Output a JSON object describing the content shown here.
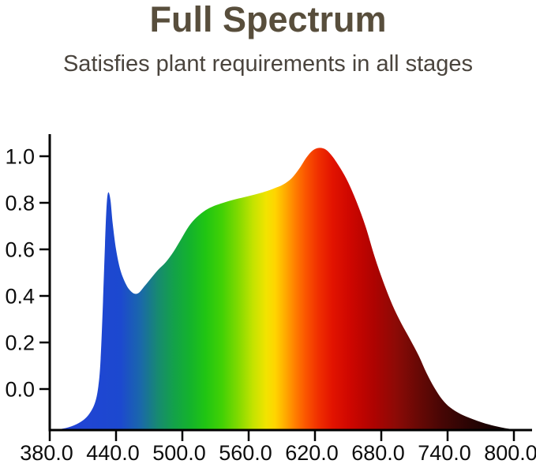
{
  "header": {
    "title": "Full Spectrum",
    "subtitle": "Satisfies plant requirements in all stages",
    "title_color": "#584e3c",
    "subtitle_color": "#4a443d"
  },
  "chart_data": {
    "type": "area",
    "title": "Full Spectrum",
    "subtitle": "Satisfies plant requirements in all stages",
    "xlabel": "",
    "ylabel": "",
    "x_ticks": [
      380,
      440,
      500,
      560,
      620,
      680,
      740,
      800
    ],
    "x_tick_labels": [
      "380.0",
      "440.0",
      "500.0",
      "560.0",
      "620.0",
      "680.0",
      "740.0",
      "800.0"
    ],
    "y_ticks": [
      0.0,
      0.2,
      0.4,
      0.6,
      0.8,
      1.0
    ],
    "y_tick_labels": [
      "0.0",
      "0.2",
      "0.4",
      "0.6",
      "0.8",
      "1.0"
    ],
    "xlim": [
      380,
      817
    ],
    "ylim": [
      -0.18,
      1.09
    ],
    "grid": false,
    "legend": false,
    "axis_color": "#000000",
    "description": "Relative spectral power distribution of a full-spectrum grow light: blue peak ~0.85 at 433 nm, dip ~0.41 at 457 nm, broad rise through green-yellow ~0.8, main red peak ~1.03 at 620-625 nm, tail to zero near 800 nm.",
    "points": [
      [
        380,
        -0.176
      ],
      [
        392,
        -0.17
      ],
      [
        402,
        -0.156
      ],
      [
        410,
        -0.135
      ],
      [
        416,
        -0.105
      ],
      [
        421,
        -0.058
      ],
      [
        424,
        0.012
      ],
      [
        426,
        0.125
      ],
      [
        428,
        0.35
      ],
      [
        430,
        0.62
      ],
      [
        431.5,
        0.79
      ],
      [
        433,
        0.845
      ],
      [
        435,
        0.81
      ],
      [
        437,
        0.71
      ],
      [
        440,
        0.6
      ],
      [
        444,
        0.51
      ],
      [
        449,
        0.45
      ],
      [
        453,
        0.422
      ],
      [
        457,
        0.409
      ],
      [
        461,
        0.415
      ],
      [
        466,
        0.443
      ],
      [
        472,
        0.478
      ],
      [
        478,
        0.512
      ],
      [
        485,
        0.545
      ],
      [
        492,
        0.59
      ],
      [
        499,
        0.645
      ],
      [
        506,
        0.7
      ],
      [
        513,
        0.738
      ],
      [
        521,
        0.768
      ],
      [
        529,
        0.787
      ],
      [
        537,
        0.8
      ],
      [
        546,
        0.813
      ],
      [
        556,
        0.824
      ],
      [
        566,
        0.836
      ],
      [
        575,
        0.848
      ],
      [
        583,
        0.862
      ],
      [
        591,
        0.878
      ],
      [
        599,
        0.906
      ],
      [
        606,
        0.948
      ],
      [
        612,
        0.993
      ],
      [
        618,
        1.025
      ],
      [
        624,
        1.036
      ],
      [
        630,
        1.028
      ],
      [
        636,
        0.998
      ],
      [
        643,
        0.948
      ],
      [
        650,
        0.888
      ],
      [
        658,
        0.8
      ],
      [
        666,
        0.695
      ],
      [
        674,
        0.568
      ],
      [
        682,
        0.458
      ],
      [
        690,
        0.362
      ],
      [
        698,
        0.283
      ],
      [
        706,
        0.214
      ],
      [
        714,
        0.142
      ],
      [
        721,
        0.068
      ],
      [
        728,
        0.006
      ],
      [
        735,
        -0.044
      ],
      [
        742,
        -0.078
      ],
      [
        752,
        -0.108
      ],
      [
        762,
        -0.128
      ],
      [
        772,
        -0.145
      ],
      [
        782,
        -0.158
      ],
      [
        792,
        -0.168
      ],
      [
        801,
        -0.174
      ],
      [
        808,
        -0.176
      ]
    ],
    "gradient_stops": [
      [
        0.0,
        "#2441d8"
      ],
      [
        0.15,
        "#1c49cf"
      ],
      [
        0.192,
        "#1a68aa"
      ],
      [
        0.229,
        "#178a70"
      ],
      [
        0.262,
        "#13a14a"
      ],
      [
        0.297,
        "#14b32c"
      ],
      [
        0.329,
        "#20c513"
      ],
      [
        0.364,
        "#41d105"
      ],
      [
        0.4,
        "#84da00"
      ],
      [
        0.43,
        "#c4e300"
      ],
      [
        0.458,
        "#f2e300"
      ],
      [
        0.477,
        "#ffd400"
      ],
      [
        0.498,
        "#ffab00"
      ],
      [
        0.519,
        "#ff7e00"
      ],
      [
        0.542,
        "#fa5400"
      ],
      [
        0.568,
        "#f02f00"
      ],
      [
        0.598,
        "#e21300"
      ],
      [
        0.638,
        "#cc0600"
      ],
      [
        0.685,
        "#ae0301"
      ],
      [
        0.731,
        "#8d0a06"
      ],
      [
        0.778,
        "#690905"
      ],
      [
        0.832,
        "#450605"
      ],
      [
        0.89,
        "#290403"
      ],
      [
        0.937,
        "#170202"
      ],
      [
        1.0,
        "#060101"
      ]
    ]
  }
}
